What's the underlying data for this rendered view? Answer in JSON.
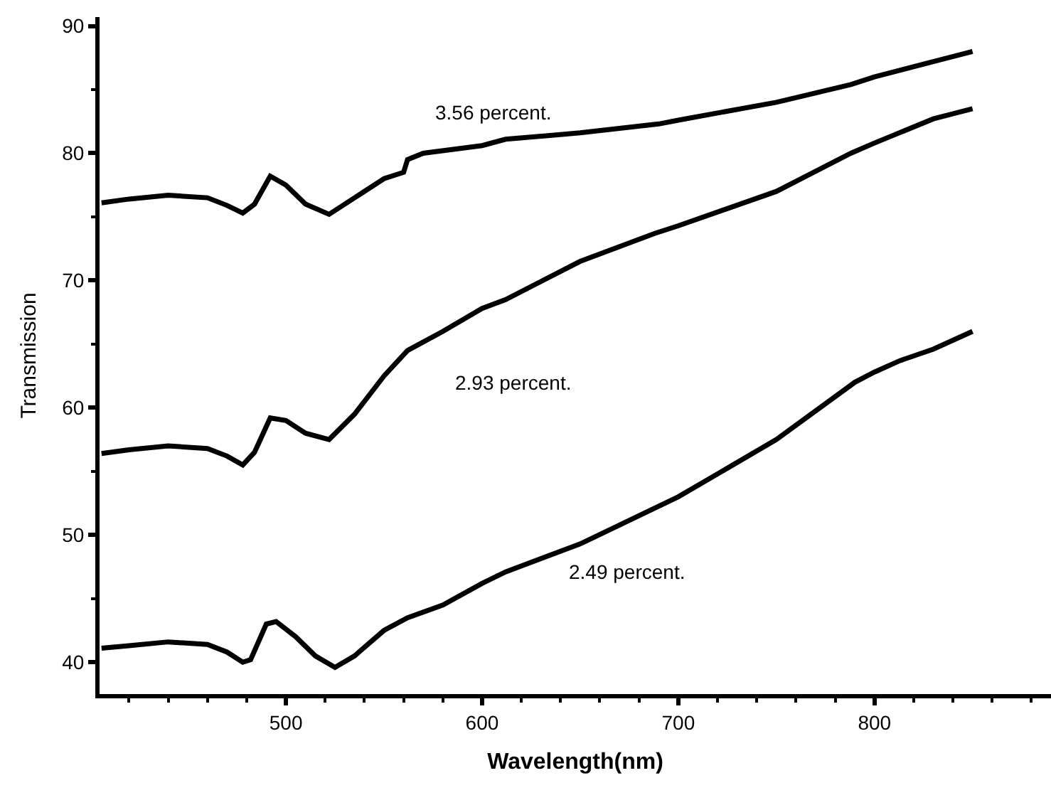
{
  "chart_data": {
    "type": "line",
    "xlabel": "Wavelength(nm)",
    "ylabel": "Transmission",
    "xlim": [
      405,
      890
    ],
    "ylim": [
      37.5,
      90.7
    ],
    "xticks": [
      500,
      600,
      700,
      800
    ],
    "yticks": [
      40,
      50,
      60,
      70,
      80,
      90
    ],
    "legend": false,
    "marker": "none",
    "line_style": "solid",
    "series": [
      {
        "name": "3.56 percent.",
        "color": "#000000",
        "x": [
          406,
          420,
          440,
          460,
          470,
          478,
          484,
          492,
          500,
          510,
          522,
          535,
          550,
          560,
          562,
          570,
          600,
          612,
          650,
          690,
          700,
          750,
          788,
          800,
          830,
          850
        ],
        "values": [
          76.1,
          76.4,
          76.7,
          76.5,
          75.9,
          75.3,
          76.0,
          78.2,
          77.5,
          76.0,
          75.2,
          76.5,
          78.0,
          78.5,
          79.5,
          80.0,
          80.6,
          81.1,
          81.6,
          82.3,
          82.6,
          84.0,
          85.4,
          86.0,
          87.2,
          88.0
        ]
      },
      {
        "name": "2.93 percent.",
        "color": "#000000",
        "x": [
          406,
          420,
          440,
          460,
          470,
          478,
          484,
          492,
          500,
          510,
          522,
          535,
          550,
          562,
          580,
          600,
          612,
          650,
          688,
          700,
          750,
          788,
          800,
          830,
          850
        ],
        "values": [
          56.4,
          56.7,
          57.0,
          56.8,
          56.2,
          55.5,
          56.5,
          59.2,
          59.0,
          58.0,
          57.5,
          59.5,
          62.5,
          64.5,
          66.0,
          67.8,
          68.5,
          71.5,
          73.7,
          74.3,
          77.0,
          80.0,
          80.8,
          82.7,
          83.5
        ]
      },
      {
        "name": "2.49 percent.",
        "color": "#000000",
        "x": [
          406,
          420,
          440,
          460,
          470,
          478,
          482,
          490,
          495,
          505,
          515,
          525,
          535,
          550,
          562,
          580,
          600,
          612,
          650,
          700,
          750,
          790,
          800,
          813,
          830,
          850
        ],
        "values": [
          41.1,
          41.3,
          41.6,
          41.4,
          40.8,
          40.0,
          40.2,
          43.0,
          43.2,
          42.0,
          40.5,
          39.6,
          40.5,
          42.5,
          43.5,
          44.5,
          46.2,
          47.1,
          49.3,
          53.0,
          57.5,
          62.0,
          62.8,
          63.7,
          64.6,
          66.0
        ]
      }
    ]
  }
}
